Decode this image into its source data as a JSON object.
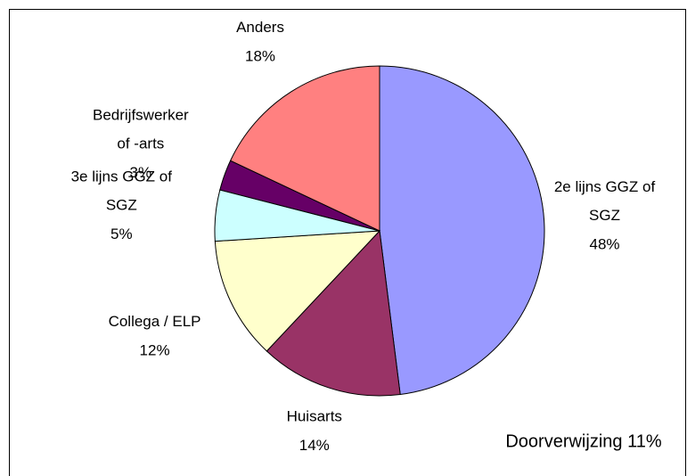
{
  "chart_data": {
    "type": "pie",
    "categories": [
      "2e lijns GGZ of SGZ",
      "Huisarts",
      "Collega / ELP",
      "3e lijns GGZ of SGZ",
      "Bedrijfswerker of -arts",
      "Anders"
    ],
    "values": [
      48,
      14,
      12,
      5,
      3,
      18
    ],
    "value_labels": [
      "48%",
      "14%",
      "12%",
      "5%",
      "3%",
      "18%"
    ],
    "colors": [
      "#9999ff",
      "#993366",
      "#ffffcc",
      "#ccffff",
      "#660066",
      "#ff8080"
    ],
    "annotation": "Doorverwijzing 11%"
  }
}
